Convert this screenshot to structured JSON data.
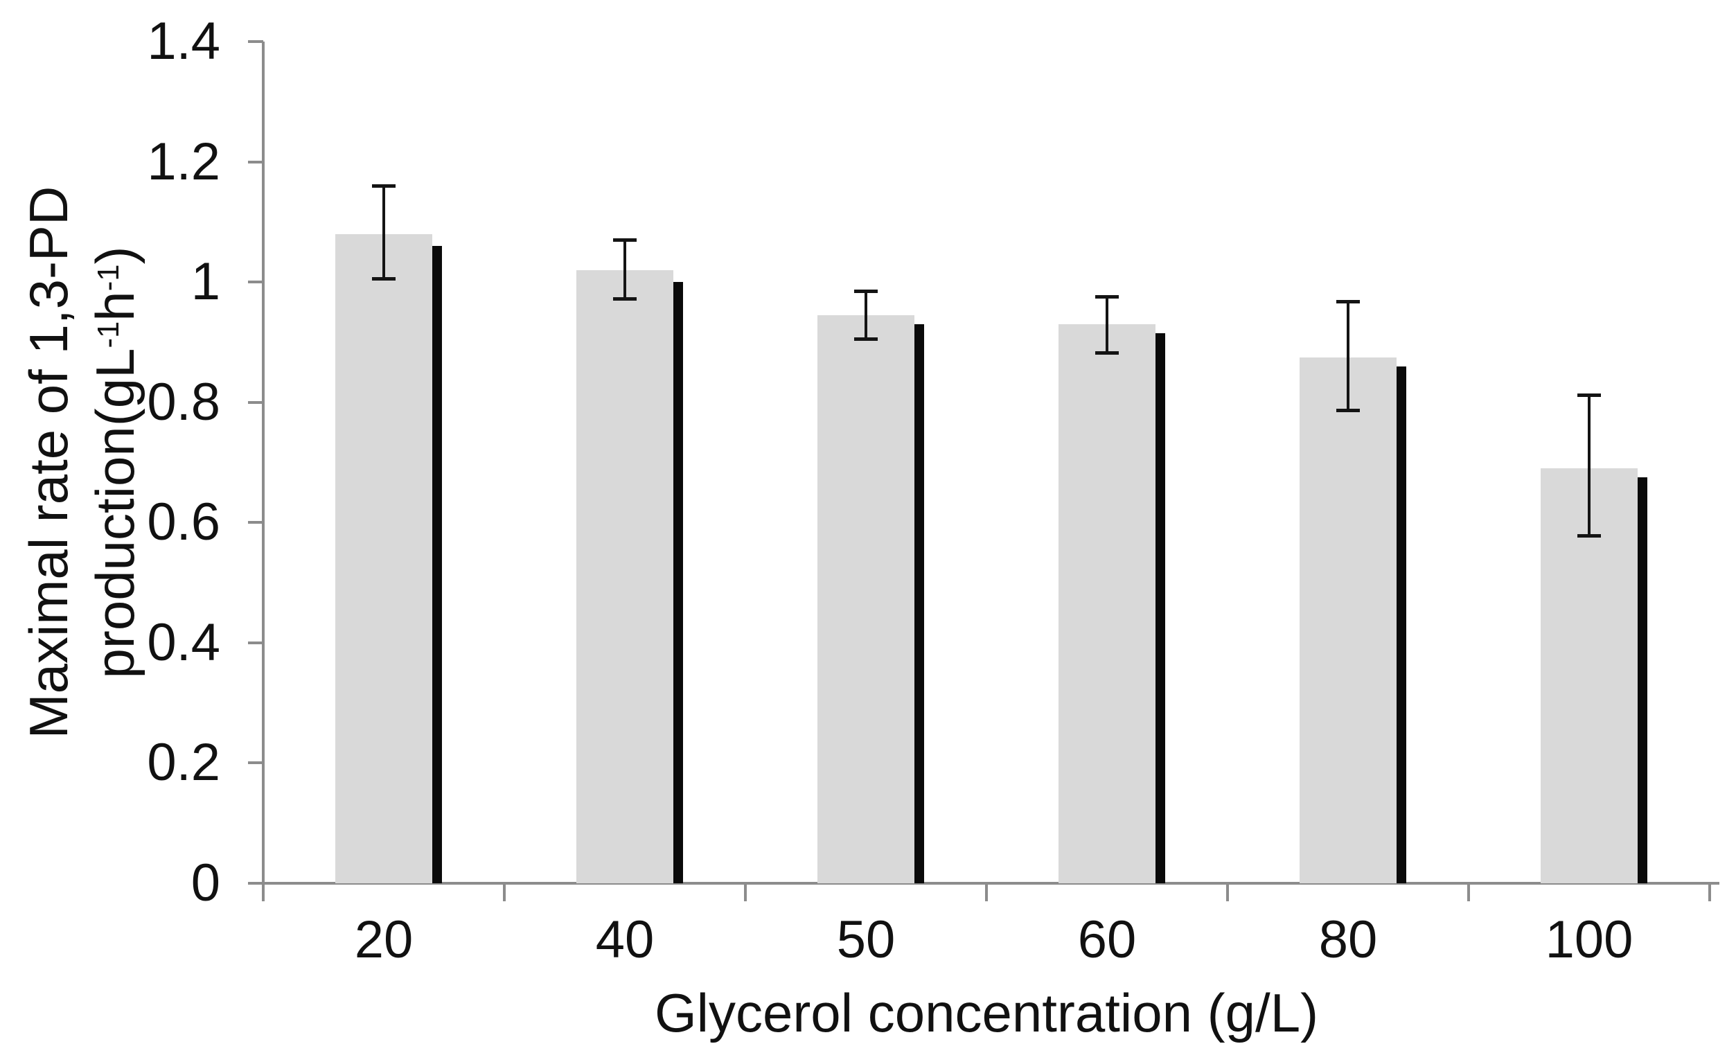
{
  "chart_data": {
    "type": "bar",
    "title": "",
    "categories": [
      "20",
      "40",
      "50",
      "60",
      "80",
      "100"
    ],
    "series": [
      {
        "name": "maximal-rate-of-1,3-PD-production",
        "values": [
          1.08,
          1.02,
          0.945,
          0.93,
          0.875,
          0.69
        ],
        "error_plus": [
          0.08,
          0.05,
          0.04,
          0.046,
          0.093,
          0.122
        ],
        "error_minus": [
          0.075,
          0.049,
          0.04,
          0.049,
          0.089,
          0.113
        ],
        "color": "#d9d9d9"
      },
      {
        "name": "bar-right-shadow",
        "values": [
          1.06,
          1.0,
          0.93,
          0.915,
          0.86,
          0.675
        ],
        "color": "#0a0a0a"
      }
    ],
    "xlabel": "Glycerol concentration (g/L)",
    "ylabel": {
      "line1": "Maximal rate of 1,3-PD",
      "line2_pre": "production(gL",
      "line2_sup1": "-1",
      "line2_mid": "h",
      "line2_sup2": "-1",
      "line2_post": ")"
    },
    "ylim": [
      0,
      1.4
    ],
    "yticks": [
      {
        "v": 1.4,
        "label": "1.4"
      },
      {
        "v": 1.2,
        "label": "1.2"
      },
      {
        "v": 1.0,
        "label": "1"
      },
      {
        "v": 0.8,
        "label": "0.8"
      },
      {
        "v": 0.6,
        "label": "0.6"
      },
      {
        "v": 0.4,
        "label": "0.4"
      },
      {
        "v": 0.2,
        "label": "0.2"
      },
      {
        "v": 0.0,
        "label": "0"
      }
    ],
    "grid": false,
    "legend_position": "none",
    "error_bar_color": "#141414",
    "axis_color": "#8c8c8c"
  }
}
